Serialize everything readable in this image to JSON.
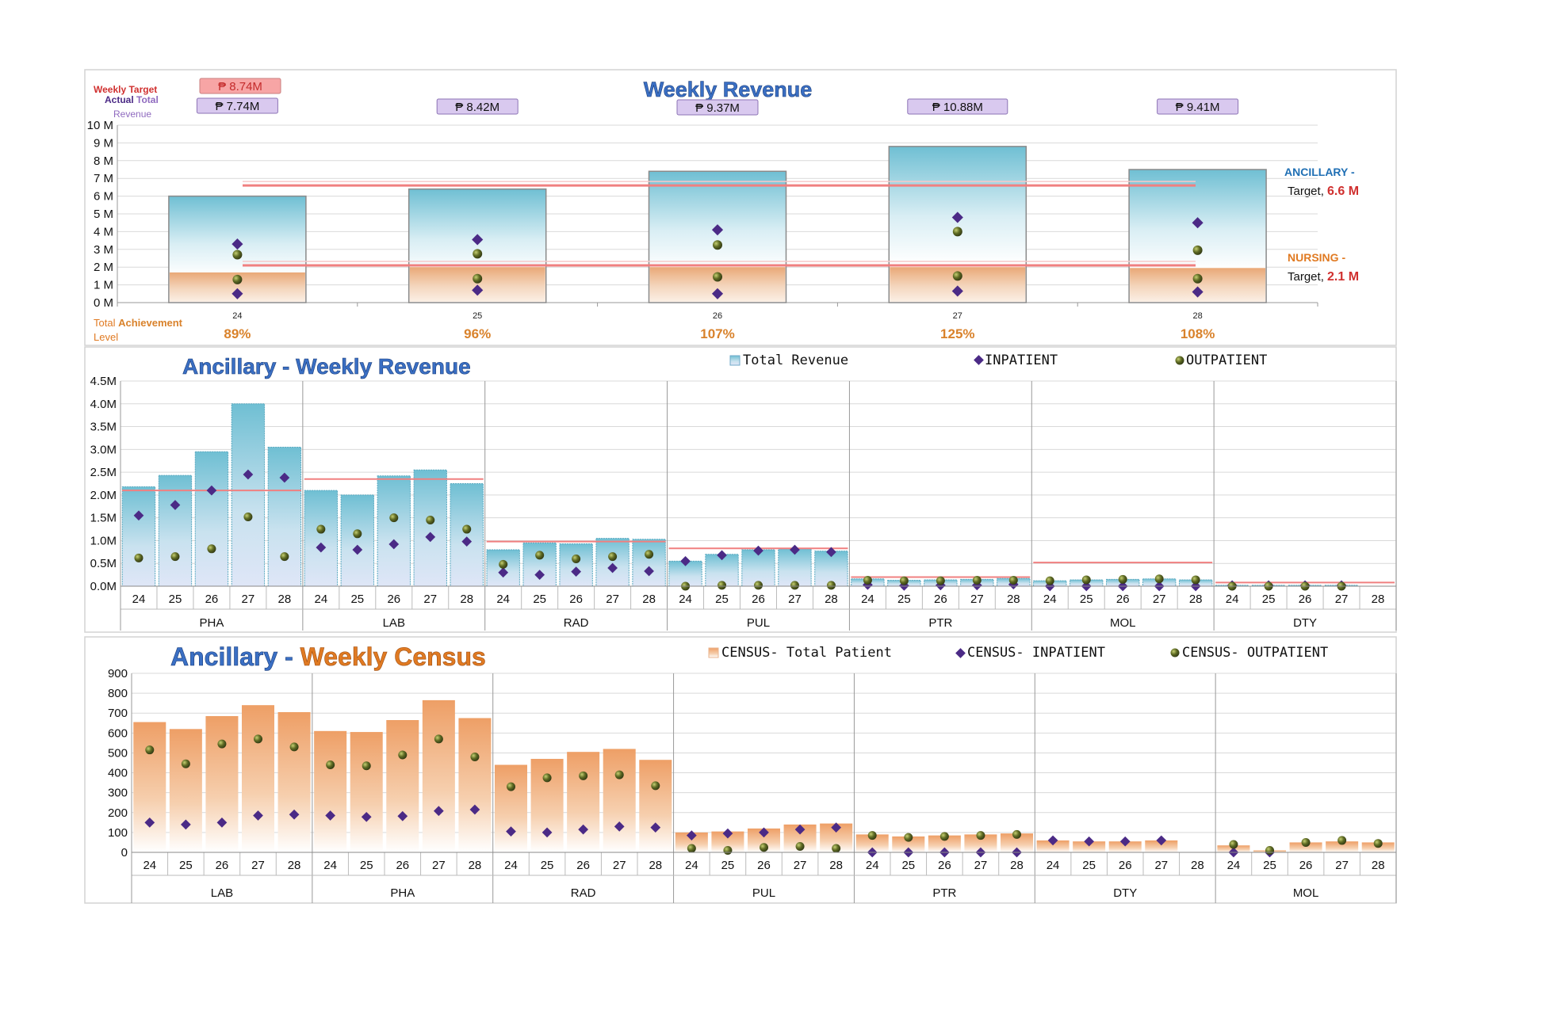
{
  "colors": {
    "target_line": "#f08080",
    "inpatient": "#4b2a86",
    "outpatient": "#4e5a1e",
    "rev_top": "#6fbfd3",
    "nursing_band": "#e9a877",
    "census_top": "#ee9f66",
    "title_blue": "#3a6fc4",
    "title_orange": "#e07a22",
    "achieve": "#d9822b",
    "target_text": "#d0302f",
    "ancillary_label": "#1f6fb4",
    "nursing_label": "#e07a22",
    "tag_fill": "#d9c9ef",
    "tag_target_fill": "#f7a5a5"
  },
  "chart_data": [
    {
      "id": "weekly-revenue",
      "type": "bar",
      "title": "Weekly Revenue",
      "categories": [
        "24",
        "25",
        "26",
        "27",
        "28"
      ],
      "y_unit": "M",
      "ylim": [
        0,
        10
      ],
      "yticks": [
        "0 M",
        "1 M",
        "2 M",
        "3 M",
        "4 M",
        "5 M",
        "6 M",
        "7 M",
        "8 M",
        "9 M",
        "10 M"
      ],
      "series": [
        {
          "name": "Total Revenue",
          "values": [
            6.0,
            6.4,
            7.4,
            8.8,
            7.5
          ]
        },
        {
          "name": "Nursing",
          "values": [
            1.7,
            2.0,
            2.0,
            2.0,
            1.95
          ]
        },
        {
          "name": "Inpatient",
          "values": [
            3.3,
            3.55,
            4.1,
            4.8,
            4.5
          ]
        },
        {
          "name": "Outpatient",
          "values": [
            2.7,
            2.75,
            3.25,
            4.0,
            2.95
          ]
        },
        {
          "name": "Inpatient (Nursing)",
          "values": [
            0.5,
            0.7,
            0.5,
            0.65,
            0.6
          ]
        },
        {
          "name": "Outpatient (Nursing)",
          "values": [
            1.3,
            1.35,
            1.45,
            1.5,
            1.35
          ]
        }
      ],
      "target_lines": [
        6.6,
        2.1
      ],
      "weekly_target_label": "Weekly Target",
      "weekly_target_value": "₱ 8.74M",
      "actual_label_1": "Actual",
      "actual_label_2": "Total",
      "actual_label_3": "Revenue",
      "actual_totals": [
        "₱ 7.74M",
        "₱ 8.42M",
        "₱ 9.37M",
        "₱ 10.88M",
        "₱ 9.41M"
      ],
      "achievement_label_1": "Total",
      "achievement_label_2": "Achievement",
      "achievement_label_3": "Level",
      "achievement": [
        "89%",
        "96%",
        "107%",
        "125%",
        "108%"
      ],
      "ancillary_label": "ANCILLARY -",
      "ancillary_target_prefix": "Target,",
      "ancillary_target_value": "6.6 M",
      "nursing_label": "NURSING -",
      "nursing_target_prefix": "Target,",
      "nursing_target_value": "2.1 M"
    },
    {
      "id": "ancillary-revenue",
      "type": "bar",
      "title": "Ancillary - Weekly Revenue",
      "legend": [
        "Total Revenue",
        "INPATIENT",
        "OUTPATIENT"
      ],
      "ylim": [
        0,
        4.5
      ],
      "yticks": [
        "0.0M",
        "0.5M",
        "1.0M",
        "1.5M",
        "2.0M",
        "2.5M",
        "3.0M",
        "3.5M",
        "4.0M",
        "4.5M"
      ],
      "weeks": [
        "24",
        "25",
        "26",
        "27",
        "28"
      ],
      "groups": [
        {
          "name": "PHA",
          "total": [
            2.18,
            2.43,
            2.95,
            4.0,
            3.05
          ],
          "inpatient": [
            1.55,
            1.78,
            2.1,
            2.45,
            2.38
          ],
          "outpatient": [
            0.62,
            0.65,
            0.82,
            1.52,
            0.65
          ],
          "target": 2.1
        },
        {
          "name": "LAB",
          "total": [
            2.1,
            2.0,
            2.42,
            2.55,
            2.25
          ],
          "inpatient": [
            0.85,
            0.8,
            0.92,
            1.08,
            0.98
          ],
          "outpatient": [
            1.25,
            1.15,
            1.5,
            1.45,
            1.25
          ],
          "target": 2.35
        },
        {
          "name": "RAD",
          "total": [
            0.8,
            0.95,
            0.93,
            1.05,
            1.03
          ],
          "inpatient": [
            0.3,
            0.25,
            0.32,
            0.4,
            0.33
          ],
          "outpatient": [
            0.48,
            0.68,
            0.6,
            0.65,
            0.7
          ],
          "target": 0.98
        },
        {
          "name": "PUL",
          "total": [
            0.55,
            0.7,
            0.8,
            0.82,
            0.77
          ],
          "inpatient": [
            0.55,
            0.68,
            0.78,
            0.8,
            0.75
          ],
          "outpatient": [
            0.0,
            0.02,
            0.02,
            0.02,
            0.02
          ],
          "target": 0.83
        },
        {
          "name": "PTR",
          "total": [
            0.16,
            0.13,
            0.14,
            0.15,
            0.17
          ],
          "inpatient": [
            0.03,
            0.01,
            0.02,
            0.02,
            0.04
          ],
          "outpatient": [
            0.13,
            0.12,
            0.12,
            0.13,
            0.13
          ],
          "target": 0.2
        },
        {
          "name": "MOL",
          "total": [
            0.12,
            0.14,
            0.15,
            0.16,
            0.14
          ],
          "inpatient": [
            0.0,
            0.0,
            0.0,
            0.0,
            0.0
          ],
          "outpatient": [
            0.12,
            0.14,
            0.15,
            0.16,
            0.14
          ],
          "target": 0.52
        },
        {
          "name": "DTY",
          "total": [
            0.02,
            0.02,
            0.02,
            0.02,
            0.0
          ],
          "inpatient": [
            0.02,
            0.02,
            0.02,
            0.02,
            null
          ],
          "outpatient": [
            0.0,
            0.0,
            0.0,
            0.0,
            null
          ],
          "target": 0.08
        }
      ]
    },
    {
      "id": "ancillary-census",
      "type": "bar",
      "title_part1": "Ancillary",
      "title_sep": " - ",
      "title_part2": "Weekly Census",
      "legend": [
        "CENSUS- Total Patient",
        "CENSUS- INPATIENT",
        "CENSUS- OUTPATIENT"
      ],
      "ylim": [
        0,
        900
      ],
      "yticks": [
        "0",
        "100",
        "200",
        "300",
        "400",
        "500",
        "600",
        "700",
        "800",
        "900"
      ],
      "weeks": [
        "24",
        "25",
        "26",
        "27",
        "28"
      ],
      "groups": [
        {
          "name": "LAB",
          "total": [
            655,
            620,
            685,
            740,
            705
          ],
          "inpatient": [
            150,
            140,
            150,
            185,
            190
          ],
          "outpatient": [
            515,
            445,
            545,
            570,
            530
          ]
        },
        {
          "name": "PHA",
          "total": [
            610,
            605,
            665,
            765,
            675
          ],
          "inpatient": [
            185,
            178,
            182,
            208,
            215
          ],
          "outpatient": [
            440,
            435,
            490,
            570,
            480
          ]
        },
        {
          "name": "RAD",
          "total": [
            440,
            470,
            505,
            520,
            465
          ],
          "inpatient": [
            105,
            100,
            115,
            130,
            125
          ],
          "outpatient": [
            330,
            375,
            385,
            390,
            335
          ]
        },
        {
          "name": "PUL",
          "total": [
            100,
            105,
            120,
            140,
            145
          ],
          "inpatient": [
            85,
            95,
            100,
            115,
            125
          ],
          "outpatient": [
            20,
            10,
            25,
            30,
            20
          ]
        },
        {
          "name": "PTR",
          "total": [
            90,
            80,
            85,
            90,
            95
          ],
          "inpatient": [
            0,
            0,
            0,
            0,
            0
          ],
          "outpatient": [
            85,
            75,
            80,
            85,
            90
          ]
        },
        {
          "name": "DTY",
          "total": [
            60,
            55,
            55,
            60,
            0
          ],
          "inpatient": [
            60,
            55,
            55,
            60,
            null
          ],
          "outpatient": [
            null,
            null,
            null,
            null,
            null
          ]
        },
        {
          "name": "MOL",
          "total": [
            35,
            10,
            50,
            55,
            50
          ],
          "inpatient": [
            0,
            0,
            null,
            null,
            null
          ],
          "outpatient": [
            40,
            10,
            50,
            60,
            45
          ]
        }
      ]
    }
  ]
}
